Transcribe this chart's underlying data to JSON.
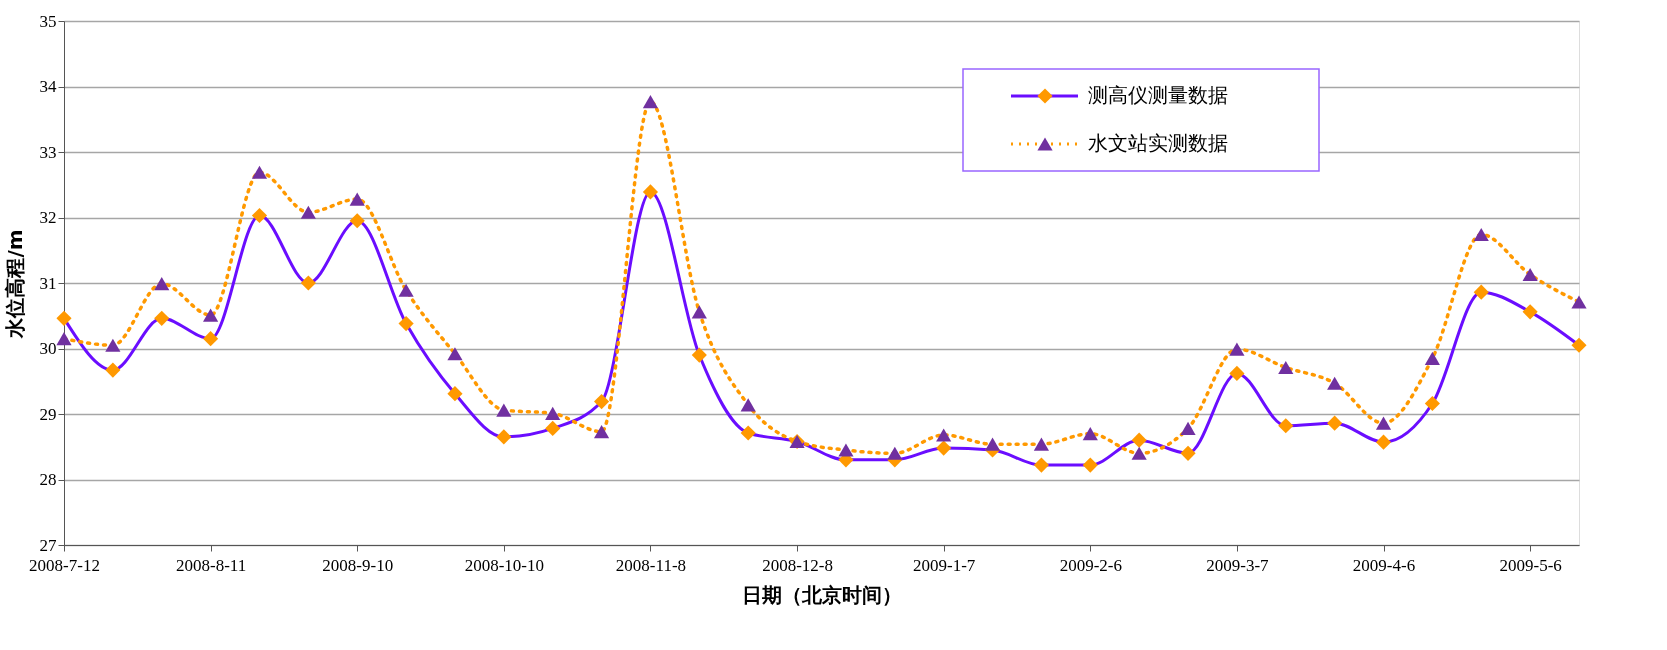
{
  "chart_data": {
    "type": "line",
    "xlabel": "日期（北京时间）",
    "ylabel": "水位高程/m",
    "categories": [
      "2008-7-12",
      null,
      null,
      "2008-8-11",
      null,
      null,
      "2008-9-10",
      null,
      null,
      "2008-10-10",
      null,
      null,
      "2008-11-8",
      null,
      null,
      "2008-12-8",
      null,
      null,
      "2009-1-7",
      null,
      null,
      "2009-2-6",
      null,
      null,
      "2009-3-7",
      null,
      null,
      "2009-4-6",
      null,
      null,
      "2009-5-6",
      null
    ],
    "ylim": [
      27,
      35
    ],
    "yticks": [
      27,
      28,
      29,
      30,
      31,
      32,
      33,
      34,
      35
    ],
    "grid": "y",
    "legend": "top right",
    "series": [
      {
        "name": "测高仪测量数据",
        "color": "#6a0dff",
        "marker": "diamond",
        "line_style": "solid",
        "colors": [
          "#ff9900",
          "#ff9900",
          "#ff9900",
          "#ff9900",
          "#ff9900",
          "#ff9900",
          "#ff9900",
          "#ff9900",
          "#ff9900",
          "#ff9900",
          "#ff9900",
          "#ff9900",
          "#ff9900",
          "#ff9900",
          "#ff9900",
          "#ff9900",
          "#ff9900",
          "#ff9900",
          "#ff9900",
          "#ff9900",
          "#ff9900",
          "#ff9900",
          "#ff9900",
          "#ff9900",
          "#ff9900",
          "#ff9900",
          "#ff9900",
          "#ff9900",
          "#ff9900",
          "#ff9900",
          "#ff9900",
          "#ff9900"
        ],
        "values": [
          30.46,
          29.67,
          30.46,
          30.15,
          32.03,
          31.0,
          31.95,
          30.38,
          29.31,
          28.65,
          28.78,
          29.19,
          32.39,
          29.9,
          28.71,
          28.58,
          28.3,
          28.3,
          28.48,
          28.45,
          28.22,
          28.22,
          28.6,
          28.4,
          29.62,
          28.82,
          28.86,
          28.57,
          29.16,
          30.86,
          30.56,
          30.05
        ]
      },
      {
        "name": "水文站实测数据",
        "color": "#ff9900",
        "marker": "triangle",
        "line_style": "dotted",
        "colors": [
          "#7030a0",
          "#7030a0",
          "#7030a0",
          "#7030a0",
          "#7030a0",
          "#7030a0",
          "#7030a0",
          "#7030a0",
          "#7030a0",
          "#7030a0",
          "#7030a0",
          "#7030a0",
          "#7030a0",
          "#7030a0",
          "#7030a0",
          "#7030a0",
          "#7030a0",
          "#7030a0",
          "#7030a0",
          "#7030a0",
          "#7030a0",
          "#7030a0",
          "#7030a0",
          "#7030a0",
          "#7030a0",
          "#7030a0",
          "#7030a0",
          "#7030a0",
          "#7030a0",
          "#7030a0",
          "#7030a0",
          "#7030a0"
        ],
        "values": [
          30.15,
          30.05,
          30.99,
          30.51,
          32.69,
          32.08,
          32.28,
          30.89,
          29.92,
          29.06,
          29.01,
          28.73,
          33.77,
          30.56,
          29.14,
          28.58,
          28.45,
          28.4,
          28.68,
          28.54,
          28.54,
          28.7,
          28.4,
          28.78,
          29.99,
          29.71,
          29.47,
          28.86,
          29.85,
          31.74,
          31.13,
          30.71
        ]
      }
    ]
  }
}
